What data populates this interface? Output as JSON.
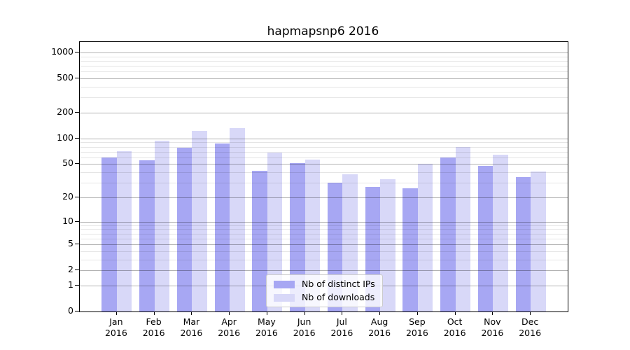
{
  "title": "hapmapsnp6 2016",
  "colors": {
    "distinct_ips_bar": "#a7a7f3",
    "downloads_bar": "#d8d8f8",
    "grid_major": "rgba(0,0,0,0.30)",
    "grid_minor": "rgba(0,0,0,0.10)",
    "axis_spine": "#000000",
    "legend_border": "#cccccc"
  },
  "chart_data": {
    "type": "bar",
    "title": "hapmapsnp6 2016",
    "yscale": "log1p",
    "grid": true,
    "legend_position": "lower center inside",
    "categories": [
      "Jan",
      "Feb",
      "Mar",
      "Apr",
      "May",
      "Jun",
      "Jul",
      "Aug",
      "Sep",
      "Oct",
      "Nov",
      "Dec"
    ],
    "year_label": "2016",
    "series": [
      {
        "name": "Nb of distinct IPs",
        "color": "#a7a7f3",
        "values": [
          60,
          55,
          78,
          88,
          42,
          51,
          30,
          27,
          26,
          60,
          48,
          35
        ]
      },
      {
        "name": "Nb of downloads",
        "color": "#d8d8f8",
        "values": [
          71,
          95,
          123,
          133,
          68,
          57,
          38,
          33,
          50,
          80,
          65,
          41
        ]
      }
    ],
    "ylim": [
      0,
      1325
    ],
    "yticks": [
      0,
      1,
      2,
      5,
      10,
      20,
      50,
      100,
      200,
      500,
      1000
    ],
    "yticks_minor": [
      3,
      4,
      6,
      7,
      8,
      9,
      30,
      40,
      60,
      70,
      80,
      90,
      300,
      400,
      600,
      700,
      800,
      900
    ]
  }
}
